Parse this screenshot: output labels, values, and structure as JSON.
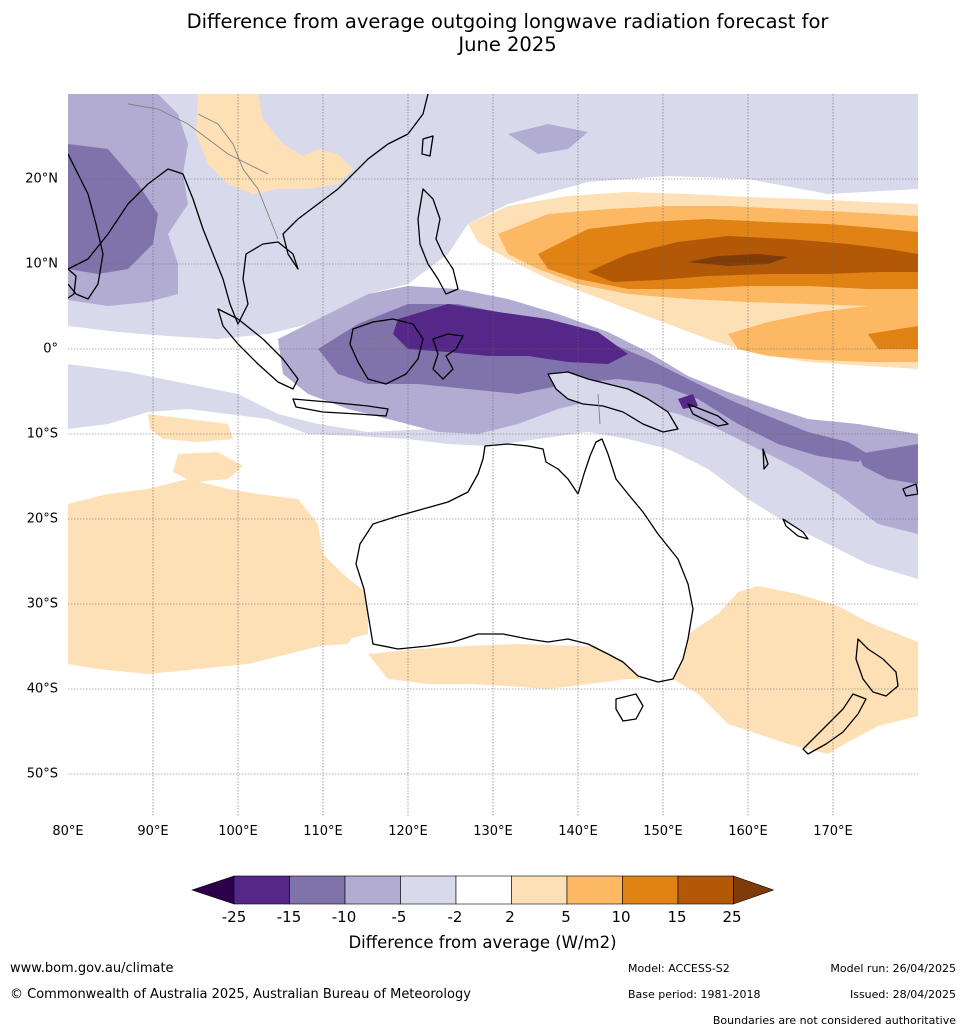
{
  "title": {
    "line1": "Difference from average outgoing longwave radiation forecast for",
    "line2": "June 2025"
  },
  "map": {
    "lon_labels": [
      "80°E",
      "90°E",
      "100°E",
      "110°E",
      "120°E",
      "130°E",
      "140°E",
      "150°E",
      "160°E",
      "170°E"
    ],
    "lat_labels": [
      "20°N",
      "10°N",
      "0°",
      "10°S",
      "20°S",
      "30°S",
      "40°S",
      "50°S"
    ],
    "extent": {
      "lon": [
        80,
        180
      ],
      "lat": [
        -55,
        30
      ]
    }
  },
  "colorbar": {
    "ticks": [
      "-25",
      "-15",
      "-10",
      "-5",
      "-2",
      "2",
      "5",
      "10",
      "15",
      "25"
    ],
    "colors": {
      "below_min": "#2d004b",
      "n25": "#542788",
      "n15": "#8073ac",
      "n10": "#b2abd2",
      "n5": "#d8daeb",
      "n2": "#ffffff",
      "p2": "#fee0b6",
      "p5": "#fdb863",
      "p10": "#e08214",
      "p15": "#b35806",
      "above_max": "#7f3b08"
    },
    "title": "Difference from average (W/m2)"
  },
  "footer": {
    "website": "www.bom.gov.au/climate",
    "copyright": "© Commonwealth of Australia 2025, Australian Bureau of Meteorology",
    "model": "Model: ACCESS-S2",
    "model_run": "Model run: 26/04/2025",
    "base_period": "Base period: 1981-2018",
    "issued": "Issued: 28/04/2025",
    "disclaimer": "Boundaries are not considered authoritative"
  }
}
